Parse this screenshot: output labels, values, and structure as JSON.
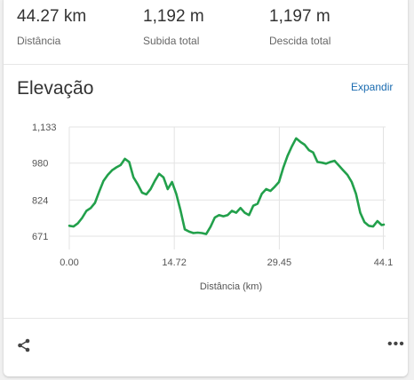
{
  "stats": [
    {
      "value": "44.27 km",
      "label": "Distância"
    },
    {
      "value": "1,192 m",
      "label": "Subida total"
    },
    {
      "value": "1,197 m",
      "label": "Descida total"
    }
  ],
  "elevation": {
    "title": "Elevação",
    "expand_label": "Expandir"
  },
  "footer": {
    "share_icon": "share-icon",
    "more_icon": "more-icon",
    "more_glyph": "•••"
  },
  "colors": {
    "line": "#22a04b",
    "link": "#1a6bb0"
  },
  "chart_data": {
    "type": "line",
    "xlabel": "Distância (km)",
    "ylabel": "",
    "x_ticks": [
      "0.00",
      "14.72",
      "29.45",
      "44.1"
    ],
    "x_tick_values": [
      0,
      14.72,
      29.45,
      44.1
    ],
    "y_ticks": [
      "1,133",
      "980",
      "824",
      "671"
    ],
    "y_tick_values": [
      1133,
      980,
      824,
      671
    ],
    "xlim": [
      0,
      44.1
    ],
    "ylim": [
      671,
      1133
    ],
    "grid": true,
    "series": [
      {
        "x": [
          0,
          0.6,
          1.2,
          1.8,
          2.4,
          3.0,
          3.6,
          4.2,
          4.8,
          5.4,
          6.0,
          6.6,
          7.2,
          7.8,
          8.4,
          9.0,
          9.6,
          10.2,
          10.8,
          11.4,
          12.0,
          12.6,
          13.2,
          13.8,
          14.4,
          15.0,
          15.6,
          16.2,
          16.8,
          17.4,
          18.0,
          18.6,
          19.2,
          19.8,
          20.4,
          21.0,
          21.6,
          22.2,
          22.8,
          23.4,
          24.0,
          24.6,
          25.2,
          25.8,
          26.4,
          27.0,
          27.6,
          28.2,
          28.8,
          29.4,
          30.0,
          30.6,
          31.2,
          31.8,
          32.4,
          33.0,
          33.6,
          34.2,
          34.8,
          35.4,
          36.0,
          36.6,
          37.2,
          37.8,
          38.4,
          39.0,
          39.6,
          40.2,
          40.8,
          41.4,
          42.0,
          42.6,
          43.2,
          43.8,
          44.1
        ],
        "y": [
          715,
          712,
          725,
          748,
          778,
          790,
          812,
          860,
          905,
          930,
          950,
          962,
          972,
          998,
          985,
          920,
          890,
          855,
          848,
          870,
          905,
          935,
          920,
          870,
          900,
          850,
          780,
          700,
          690,
          684,
          686,
          684,
          680,
          710,
          750,
          760,
          755,
          760,
          778,
          770,
          790,
          770,
          760,
          800,
          808,
          850,
          870,
          862,
          880,
          900,
          960,
          1010,
          1050,
          1085,
          1070,
          1058,
          1035,
          1025,
          985,
          982,
          978,
          985,
          990,
          970,
          950,
          930,
          900,
          850,
          770,
          730,
          715,
          712,
          735,
          718,
          720
        ]
      }
    ]
  }
}
